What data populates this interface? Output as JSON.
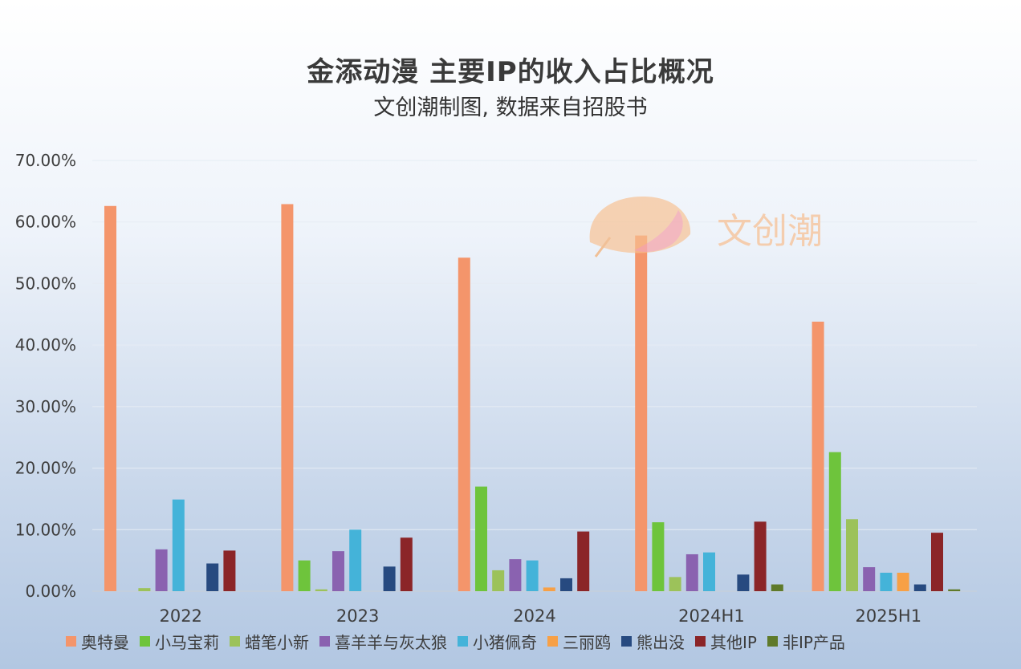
{
  "header": {
    "title": "金添动漫 主要IP的收入占比概况",
    "subtitle": "文创潮制图, 数据来自招股书"
  },
  "watermark": {
    "text": "文创潮"
  },
  "chart_data": {
    "type": "bar",
    "title": "金添动漫 主要IP的收入占比概况",
    "subtitle": "文创潮制图, 数据来自招股书",
    "categories": [
      "2022",
      "2023",
      "2024",
      "2024H1",
      "2025H1"
    ],
    "ylim": [
      0,
      70
    ],
    "yticks": [
      "0.00%",
      "10.00%",
      "20.00%",
      "30.00%",
      "40.00%",
      "50.00%",
      "60.00%",
      "70.00%"
    ],
    "grid": true,
    "legend_position": "bottom",
    "series": [
      {
        "name": "奥特曼",
        "color": "#f4956b",
        "values": [
          62.6,
          62.9,
          54.2,
          57.8,
          43.8
        ]
      },
      {
        "name": "小马宝莉",
        "color": "#6ec43c",
        "values": [
          0.0,
          5.0,
          17.0,
          11.2,
          22.6
        ]
      },
      {
        "name": "蜡笔小新",
        "color": "#9cc25a",
        "values": [
          0.5,
          0.3,
          3.4,
          2.3,
          11.7
        ]
      },
      {
        "name": "喜羊羊与灰太狼",
        "color": "#8a62b0",
        "values": [
          6.8,
          6.5,
          5.2,
          6.0,
          3.9
        ]
      },
      {
        "name": "小猪佩奇",
        "color": "#44b3d9",
        "values": [
          14.9,
          10.0,
          5.0,
          6.3,
          3.0
        ]
      },
      {
        "name": "三丽鸥",
        "color": "#f7a046",
        "values": [
          0.0,
          0.0,
          0.6,
          0.0,
          3.0
        ]
      },
      {
        "name": "熊出没",
        "color": "#274a80",
        "values": [
          4.5,
          4.0,
          2.1,
          2.7,
          1.1
        ]
      },
      {
        "name": "其他IP",
        "color": "#8b2528",
        "values": [
          6.6,
          8.7,
          9.7,
          11.3,
          9.5
        ]
      },
      {
        "name": "非IP产品",
        "color": "#5f7a2a",
        "values": [
          0.0,
          0.0,
          0.0,
          1.1,
          0.3
        ]
      }
    ]
  }
}
